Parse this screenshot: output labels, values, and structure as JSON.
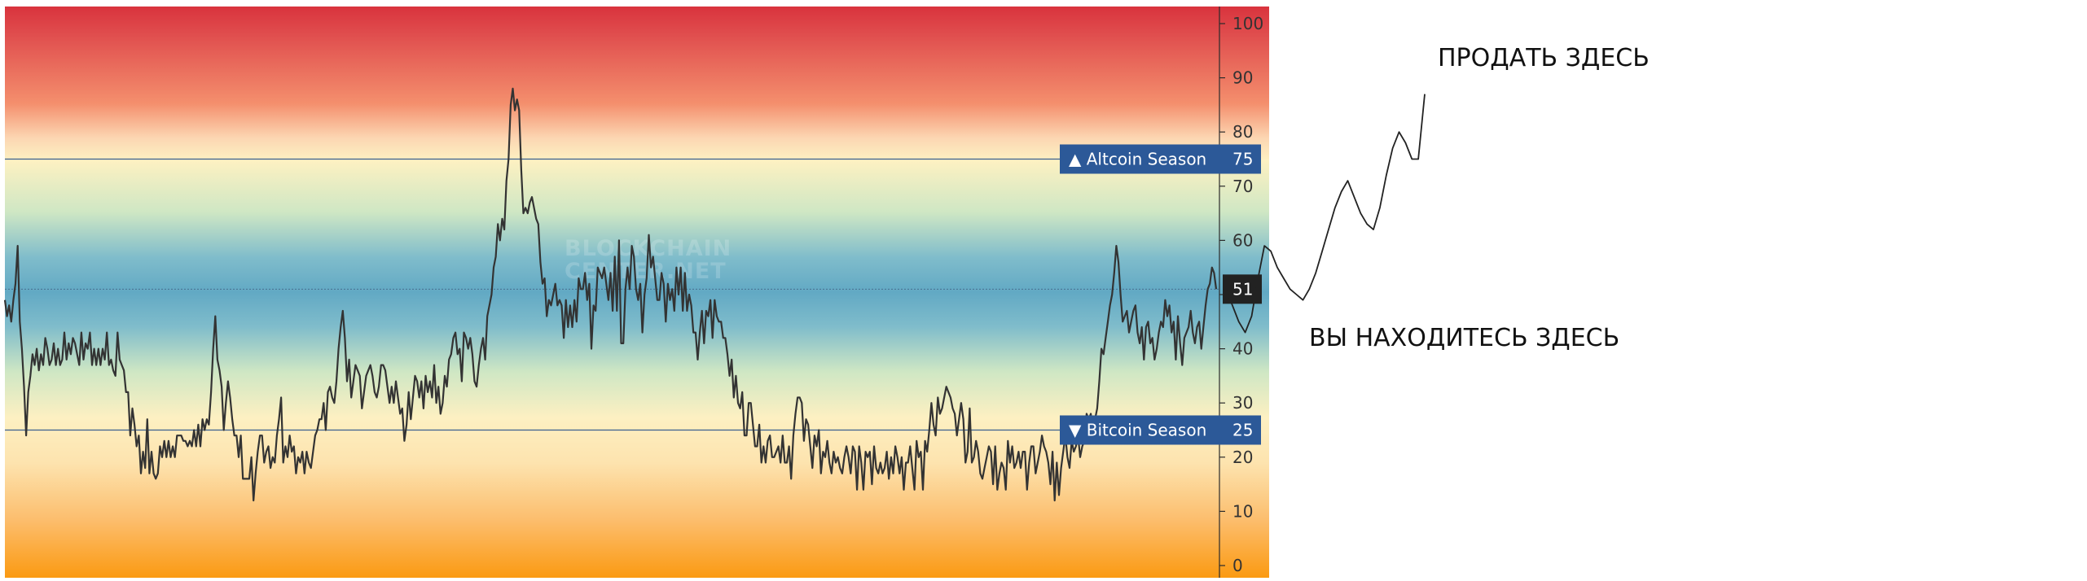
{
  "chart_data": {
    "type": "line",
    "title": "",
    "xlabel": "",
    "ylabel": "",
    "ylim": [
      0,
      100
    ],
    "y_ticks": [
      "100",
      "90",
      "80",
      "70",
      "60",
      "50",
      "40",
      "30",
      "20",
      "10",
      "0"
    ],
    "grid": false,
    "background": "vertical heat gradient: red (100) -> yellow (75) -> blue (50) -> yellow (25) -> orange (0)",
    "series": [
      {
        "values": [
          49,
          46,
          48,
          45,
          49,
          52,
          59,
          45,
          40,
          33,
          24,
          32,
          35,
          39,
          37,
          40,
          36,
          39,
          37,
          42,
          40,
          37,
          38,
          41,
          37,
          40,
          37,
          38,
          43,
          38,
          41,
          39,
          42,
          41,
          39,
          37,
          43,
          38,
          41,
          40,
          43,
          37,
          40,
          37,
          40,
          37,
          40,
          38,
          43,
          37,
          38,
          36,
          35,
          43,
          38,
          37,
          36,
          32,
          32,
          24,
          29,
          26,
          22,
          24,
          17,
          21,
          18,
          27,
          17,
          21,
          17,
          16,
          17,
          22,
          20,
          23,
          20,
          23,
          20,
          22,
          20,
          24,
          24,
          24,
          23,
          23,
          22,
          23,
          22,
          25,
          22,
          26,
          22,
          27,
          25,
          27,
          26,
          32,
          40,
          46,
          38,
          36,
          33,
          25,
          30,
          34,
          31,
          27,
          24,
          24,
          20,
          24,
          16,
          16,
          16,
          16,
          20,
          12,
          17,
          21,
          24,
          24,
          19,
          21,
          22,
          18,
          20,
          19,
          24,
          27,
          31,
          19,
          22,
          20,
          24,
          21,
          22,
          17,
          20,
          19,
          21,
          17,
          21,
          19,
          18,
          21,
          24,
          25,
          27,
          27,
          30,
          25,
          32,
          33,
          31,
          30,
          34,
          40,
          44,
          47,
          42,
          34,
          38,
          31,
          34,
          37,
          36,
          35,
          29,
          32,
          35,
          36,
          37,
          35,
          32,
          31,
          33,
          37,
          37,
          36,
          33,
          30,
          33,
          30,
          34,
          31,
          28,
          29,
          23,
          26,
          32,
          27,
          31,
          35,
          34,
          31,
          34,
          29,
          35,
          32,
          34,
          31,
          37,
          30,
          33,
          28,
          30,
          35,
          33,
          38,
          39,
          42,
          43,
          39,
          40,
          34,
          43,
          42,
          40,
          42,
          39,
          34,
          33,
          37,
          40,
          42,
          38,
          46,
          48,
          50,
          55,
          57,
          63,
          60,
          64,
          62,
          71,
          75,
          85,
          88,
          84,
          86,
          84,
          73,
          65,
          66,
          65,
          67,
          68,
          66,
          64,
          63,
          56,
          52,
          53,
          46,
          49,
          48,
          50,
          52,
          48,
          49,
          48,
          42,
          49,
          44,
          48,
          44,
          49,
          45,
          53,
          51,
          51,
          54,
          49,
          52,
          40,
          48,
          47,
          55,
          54,
          53,
          55,
          52,
          49,
          54,
          47,
          57,
          47,
          60,
          41,
          41,
          51,
          55,
          51,
          59,
          57,
          51,
          49,
          52,
          43,
          50,
          53,
          61,
          55,
          57,
          53,
          49,
          49,
          54,
          52,
          45,
          52,
          49,
          51,
          47,
          55,
          50,
          55,
          47,
          54,
          47,
          50,
          48,
          43,
          43,
          38,
          43,
          47,
          41,
          47,
          46,
          49,
          42,
          49,
          46,
          45,
          45,
          42,
          42,
          39,
          35,
          38,
          31,
          35,
          30,
          29,
          32,
          24,
          24,
          30,
          30,
          26,
          22,
          22,
          26,
          19,
          22,
          19,
          23,
          24,
          20,
          20,
          21,
          22,
          19,
          24,
          19,
          19,
          22,
          16,
          24,
          28,
          31,
          31,
          30,
          23,
          27,
          26,
          22,
          18,
          24,
          22,
          25,
          17,
          21,
          20,
          23,
          19,
          17,
          21,
          19,
          20,
          18,
          17,
          20,
          22,
          20,
          17,
          22,
          21,
          14,
          22,
          19,
          14,
          21,
          20,
          21,
          15,
          22,
          18,
          17,
          19,
          17,
          18,
          21,
          16,
          20,
          17,
          22,
          20,
          17,
          20,
          14,
          19,
          19,
          22,
          18,
          14,
          23,
          20,
          21,
          14,
          23,
          21,
          25,
          30,
          26,
          24,
          31,
          28,
          29,
          31,
          33,
          32,
          31,
          29,
          28,
          24,
          27,
          30,
          27,
          19,
          21,
          29,
          19,
          20,
          23,
          21,
          17,
          16,
          18,
          20,
          22,
          21,
          15,
          22,
          14,
          17,
          19,
          18,
          14,
          23,
          19,
          22,
          18,
          19,
          21,
          18,
          21,
          21,
          14,
          19,
          22,
          22,
          17,
          19,
          21,
          24,
          22,
          21,
          19,
          15,
          21,
          12,
          19,
          13,
          18,
          21,
          24,
          20,
          18,
          23,
          21,
          22,
          24,
          20,
          22,
          23,
          28,
          27,
          28,
          23,
          27,
          29,
          34,
          40,
          39,
          42,
          45,
          48,
          50,
          54,
          59,
          56,
          50,
          45,
          46,
          47,
          43,
          45,
          47,
          48,
          43,
          41,
          44,
          38,
          44,
          45,
          41,
          42,
          38,
          40,
          43,
          45,
          44,
          49,
          46,
          48,
          43,
          45,
          38,
          46,
          41,
          37,
          42,
          43,
          44,
          47,
          43,
          41,
          44,
          45,
          40,
          44,
          48,
          51,
          52,
          55,
          54,
          51
        ]
      }
    ],
    "levels": [
      {
        "label": "▲ Altcoin Season",
        "value": 75
      },
      {
        "label": "▼ Bitcoin Season",
        "value": 25
      }
    ],
    "current_value": 51,
    "watermark": [
      "BLOCKCHAIN",
      "CENTER.NET"
    ],
    "projection": [
      51,
      48,
      45,
      43,
      46,
      53,
      59,
      58,
      55,
      53,
      51,
      50,
      49,
      51,
      54,
      58,
      62,
      66,
      69,
      71,
      68,
      65,
      63,
      62,
      66,
      72,
      77,
      80,
      78,
      75,
      75,
      87
    ]
  },
  "annotations": {
    "sell_text": "ПРОДАТЬ ЗДЕСЬ",
    "here_text": "ВЫ НАХОДИТЕСЬ ЗДЕСЬ"
  },
  "colors": {
    "line": "#333333",
    "level_line": "#3a5f8f",
    "season_badge": "#2c5998",
    "current_badge": "#222222",
    "gradient": [
      "#d9333d",
      "#f07a5a",
      "#f7c4a3",
      "#fdf0bd",
      "#a8d8b9",
      "#6fb1c8",
      "#a8d8b9",
      "#fdf0bd",
      "#fde0a8",
      "#fbbd6c",
      "#fa9a1a"
    ]
  }
}
